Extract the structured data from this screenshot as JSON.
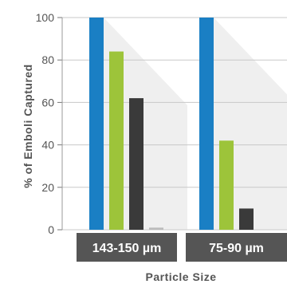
{
  "chart_data": {
    "type": "bar",
    "categories": [
      "143-150 µm",
      "75-90 µm"
    ],
    "series": [
      {
        "values": [
          100,
          100
        ],
        "color": "#1a7fc4"
      },
      {
        "values": [
          84,
          42
        ],
        "color": "#9dc43a"
      },
      {
        "values": [
          62,
          10
        ],
        "color": "#3a3a3a"
      },
      {
        "values": [
          1,
          0
        ],
        "color": "#bbbbbb"
      }
    ],
    "xlabel": "Particle Size",
    "ylabel": "% of Emboli Captured",
    "ylim": [
      0,
      100
    ],
    "yticks": [
      0,
      20,
      40,
      60,
      80,
      100
    ],
    "grid": true,
    "category_label_bg": "#555555"
  }
}
